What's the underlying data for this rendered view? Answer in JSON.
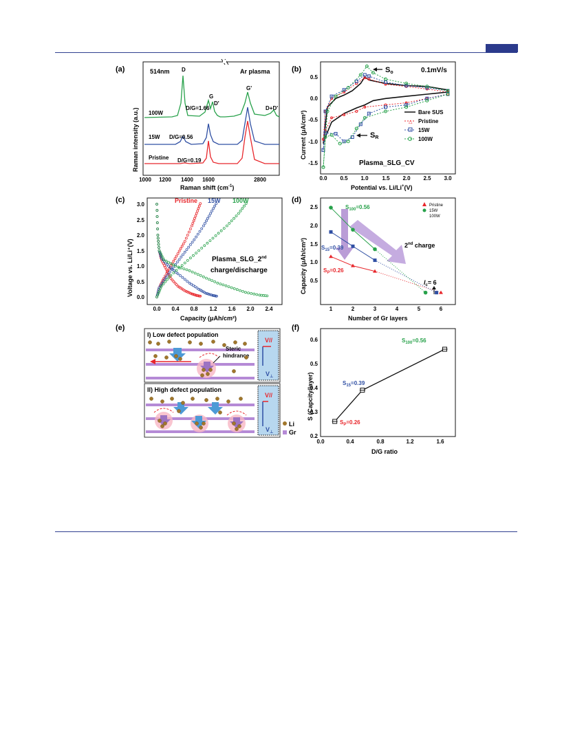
{
  "page": {
    "accent_color": "#2b3a8c"
  },
  "panels": [
    {
      "label": "(a)",
      "texts": [
        "514nm",
        "Ar plasma",
        "D",
        "G",
        "D'",
        "G'",
        "D+D'",
        "100W",
        "D/G=1.66",
        "15W",
        "D/G=0.56",
        "Pristine",
        "D/G=0.19"
      ],
      "xlabel": "Raman shift (cm",
      "xlabel_sup": "-1",
      "xlabel_end": ")",
      "ylabel": "Raman intensity (a.u.)",
      "xticks": [
        "1000",
        "1200",
        "1400",
        "1600",
        "2800"
      ]
    },
    {
      "label": "(b)",
      "so": "S",
      "so_sub": "o",
      "sr": "S",
      "sr_sub": "R",
      "rate": "0.1mV/s",
      "name": "Plasma_SLG_CV",
      "legend": [
        "Bare SUS",
        "Pristine",
        "15W",
        "100W"
      ],
      "xlabel": "Potential vs. Li/Li",
      "xlabel_sup": "+",
      "xlabel_end": "(V)",
      "ylabel": "Current (μA/cm²)",
      "xticks": [
        "0.0",
        "0.5",
        "1.0",
        "1.5",
        "2.0",
        "2.5",
        "3.0"
      ],
      "yticks": [
        "0.5",
        "0.0",
        "-0.5",
        "-1.0",
        "-1.5"
      ]
    },
    {
      "label": "(c)",
      "series_labels": [
        "Pristine",
        "15W",
        "100W"
      ],
      "name1": "Plasma_SLG_2",
      "name1_sup": "nd",
      "name2": "charge/discharge",
      "xlabel": "Capacity (μAh/cm²)",
      "ylabel": "Voltage vs. Li/Li⁺(V)",
      "xticks": [
        "0.0",
        "0.4",
        "0.8",
        "1.2",
        "1.6",
        "2.0",
        "2.4"
      ],
      "yticks": [
        "3.0",
        "2.5",
        "2.0",
        "1.5",
        "1.0",
        "0.5",
        "0.0"
      ]
    },
    {
      "label": "(d)",
      "legend": [
        "Pristine",
        "15W",
        "100W"
      ],
      "s100": "S",
      "s100_sub": "100",
      "s100_val": "=0.56",
      "s15": "S",
      "s15_sub": "15",
      "s15_val": "=0.39",
      "sp": "S",
      "sp_sub": "P",
      "sp_val": "=0.26",
      "charge": "2",
      "charge_sup": "nd",
      "charge_end": " charge",
      "lc": "l",
      "lc_sub": "c",
      "lc_val": "= 6",
      "xlabel": "Number of Gr layers",
      "ylabel": "Capacity (μAh/cm²)",
      "xticks": [
        "1",
        "2",
        "3",
        "4",
        "5",
        "6"
      ],
      "yticks": [
        "2.5",
        "2.0",
        "1.5",
        "1.0",
        "0.5"
      ]
    },
    {
      "label": "(e)",
      "low": "I) Low defect population",
      "high": "II) High defect population",
      "steric1": "Steric",
      "steric2": "hindrance",
      "v_par": "V//",
      "v_perp": "V",
      "v_perp_sub": "⊥",
      "li": "Li",
      "gr": "Gr"
    },
    {
      "label": "(f)",
      "s100": "S",
      "s100_sub": "100",
      "s100_val": "=0.56",
      "s15": "S",
      "s15_sub": "15",
      "s15_val": "=0.39",
      "sp": "S",
      "sp_sub": "P",
      "sp_val": "=0.26",
      "xlabel": "D/G ratio",
      "ylabel": "S (Capcity/layer)",
      "xticks": [
        "0.0",
        "0.4",
        "0.8",
        "1.2",
        "1.6"
      ],
      "yticks": [
        "0.6",
        "0.5",
        "0.4",
        "0.3",
        "0.2"
      ]
    }
  ],
  "chart_data": [
    {
      "type": "line",
      "title": "(a)",
      "xlabel": "Raman shift (cm-1)",
      "ylabel": "Raman intensity (a.u.)",
      "series": [
        {
          "name": "100W",
          "peaks": [
            {
              "x": 1350,
              "label": "D"
            },
            {
              "x": 1585,
              "label": "G"
            },
            {
              "x": 1620,
              "label": "D'"
            },
            {
              "x": 2690,
              "label": "G'"
            },
            {
              "x": 2940,
              "label": "D+D'"
            }
          ],
          "d_g": 1.66
        },
        {
          "name": "15W",
          "peaks": [
            {
              "x": 1350,
              "label": "D"
            },
            {
              "x": 1585,
              "label": "G"
            },
            {
              "x": 2690,
              "label": "G'"
            }
          ],
          "d_g": 0.56
        },
        {
          "name": "Pristine",
          "peaks": [
            {
              "x": 1585,
              "label": "G"
            },
            {
              "x": 2690,
              "label": "G'"
            }
          ],
          "d_g": 0.19
        }
      ]
    },
    {
      "type": "line",
      "title": "(b)",
      "xlabel": "Potential vs. Li/Li+(V)",
      "ylabel": "Current (μA/cm2)",
      "xlim": [
        0,
        3
      ],
      "ylim": [
        -1.7,
        0.8
      ],
      "series": [
        {
          "name": "Bare SUS",
          "color": "#111111",
          "x": [
            0.0,
            0.05,
            0.2,
            0.5,
            0.8,
            1.0,
            1.2,
            1.5,
            2.0,
            2.5,
            3.0,
            3.0,
            2.5,
            2.0,
            1.5,
            1.1,
            1.0,
            0.9,
            0.7,
            0.5,
            0.3,
            0.1,
            0.0
          ],
          "y": [
            -1.05,
            -0.9,
            -0.55,
            -0.35,
            -0.22,
            -0.15,
            -0.05,
            0.0,
            0.05,
            0.1,
            0.15,
            0.2,
            0.28,
            0.3,
            0.35,
            0.43,
            0.5,
            0.35,
            0.18,
            0.08,
            0.0,
            -0.2,
            -1.05
          ]
        },
        {
          "name": "Pristine",
          "color": "#e8262b",
          "x": [
            0.0,
            0.05,
            0.2,
            0.5,
            0.8,
            1.0,
            1.5,
            2.0,
            2.5,
            3.0,
            3.0,
            2.5,
            2.0,
            1.5,
            1.1,
            1.0,
            0.8,
            0.5,
            0.2,
            0.05,
            0.0
          ],
          "y": [
            -0.95,
            -0.75,
            -0.45,
            -0.38,
            -0.3,
            -0.2,
            -0.15,
            -0.1,
            0.0,
            0.1,
            0.15,
            0.22,
            0.28,
            0.33,
            0.45,
            0.48,
            0.35,
            0.15,
            0.0,
            -0.3,
            -0.95
          ]
        },
        {
          "name": "15W",
          "color": "#2f4fa3",
          "x": [
            0.0,
            0.05,
            0.3,
            0.5,
            0.7,
            0.9,
            1.1,
            1.5,
            2.0,
            2.5,
            3.0,
            3.0,
            2.5,
            2.0,
            1.5,
            1.1,
            1.0,
            0.8,
            0.5,
            0.2,
            0.05,
            0.0
          ],
          "y": [
            -1.2,
            -0.8,
            -0.82,
            -1.0,
            -0.9,
            -0.6,
            -0.35,
            -0.2,
            -0.15,
            0.0,
            0.1,
            0.18,
            0.25,
            0.3,
            0.38,
            0.52,
            0.55,
            0.4,
            0.2,
            0.05,
            -0.3,
            -1.2
          ]
        },
        {
          "name": "100W",
          "color": "#27a14a",
          "x": [
            0.0,
            0.05,
            0.2,
            0.4,
            0.6,
            0.8,
            1.0,
            1.5,
            2.0,
            2.5,
            3.0,
            3.0,
            2.5,
            2.0,
            1.5,
            1.2,
            1.05,
            0.9,
            0.6,
            0.3,
            0.1,
            0.0
          ],
          "y": [
            -1.6,
            -0.9,
            -0.85,
            -1.05,
            -1.0,
            -0.7,
            -0.45,
            -0.3,
            -0.2,
            -0.05,
            0.1,
            0.18,
            0.28,
            0.35,
            0.45,
            0.6,
            0.75,
            0.55,
            0.25,
            0.05,
            -0.3,
            -1.6
          ]
        }
      ]
    },
    {
      "type": "scatter",
      "title": "(c)",
      "xlabel": "Capacity (μAh/cm2)",
      "ylabel": "Voltage vs. Li/Li+(V)",
      "xlim": [
        -0.2,
        2.6
      ],
      "ylim": [
        -0.1,
        3.2
      ],
      "series": [
        {
          "name": "Pristine",
          "color": "#e8262b",
          "discharge": {
            "x": [
              0.0,
              0.02,
              0.05,
              0.1,
              0.2,
              0.3,
              0.45,
              0.6,
              0.75,
              0.85,
              0.95
            ],
            "y": [
              3.0,
              2.0,
              1.5,
              1.2,
              0.9,
              0.6,
              0.35,
              0.2,
              0.1,
              0.05,
              0.02
            ]
          },
          "charge": {
            "x": [
              0.0,
              0.05,
              0.15,
              0.3,
              0.45,
              0.6,
              0.75,
              0.85,
              0.95
            ],
            "y": [
              0.0,
              0.3,
              0.6,
              1.0,
              1.4,
              1.8,
              2.3,
              2.7,
              3.1
            ]
          }
        },
        {
          "name": "15W",
          "color": "#2f4fa3",
          "discharge": {
            "x": [
              0.0,
              0.02,
              0.05,
              0.1,
              0.25,
              0.45,
              0.7,
              0.9,
              1.05,
              1.2,
              1.3
            ],
            "y": [
              3.0,
              2.0,
              1.5,
              1.25,
              1.0,
              0.75,
              0.45,
              0.25,
              0.12,
              0.05,
              0.02
            ]
          },
          "charge": {
            "x": [
              0.0,
              0.05,
              0.2,
              0.4,
              0.6,
              0.8,
              1.0,
              1.15,
              1.3
            ],
            "y": [
              0.0,
              0.3,
              0.65,
              1.05,
              1.45,
              1.85,
              2.3,
              2.7,
              3.1
            ]
          }
        },
        {
          "name": "100W",
          "color": "#27a14a",
          "discharge": {
            "x": [
              0.0,
              0.02,
              0.05,
              0.15,
              0.4,
              0.7,
              1.0,
              1.3,
              1.6,
              1.9,
              2.2,
              2.4
            ],
            "y": [
              3.0,
              2.0,
              1.5,
              1.2,
              1.0,
              0.85,
              0.65,
              0.45,
              0.3,
              0.15,
              0.06,
              0.03
            ]
          },
          "charge": {
            "x": [
              0.0,
              0.1,
              0.3,
              0.6,
              0.9,
              1.2,
              1.5,
              1.75,
              1.95
            ],
            "y": [
              0.0,
              0.35,
              0.7,
              1.1,
              1.5,
              1.9,
              2.3,
              2.7,
              3.1
            ]
          }
        }
      ]
    },
    {
      "type": "scatter",
      "title": "(d)",
      "xlabel": "Number of Gr layers",
      "ylabel": "Capacity (μAh/cm2)",
      "xlim": [
        0.5,
        6.5
      ],
      "ylim": [
        0.0,
        2.7
      ],
      "series": [
        {
          "name": "Pristine",
          "color": "#e8262b",
          "x": [
            1,
            2,
            3,
            6
          ],
          "y": [
            1.15,
            0.9,
            0.75,
            0.17
          ],
          "slope": 0.26
        },
        {
          "name": "15W",
          "color": "#2f4fa3",
          "x": [
            1,
            2,
            3,
            5.8
          ],
          "y": [
            1.82,
            1.43,
            1.05,
            0.17
          ],
          "slope": 0.39
        },
        {
          "name": "100W",
          "color": "#27a14a",
          "x": [
            1,
            2,
            3,
            5.3
          ],
          "y": [
            2.48,
            1.88,
            1.35,
            0.17
          ],
          "slope": 0.56
        }
      ],
      "lc": 6
    },
    {
      "type": "line",
      "title": "(f)",
      "xlabel": "D/G ratio",
      "ylabel": "S (Capcity/layer)",
      "xlim": [
        0.0,
        1.8
      ],
      "ylim": [
        0.2,
        0.65
      ],
      "x": [
        0.19,
        0.56,
        1.66
      ],
      "y": [
        0.26,
        0.39,
        0.56
      ],
      "labels": [
        "Sp=0.26",
        "S15=0.39",
        "S100=0.56"
      ]
    }
  ]
}
